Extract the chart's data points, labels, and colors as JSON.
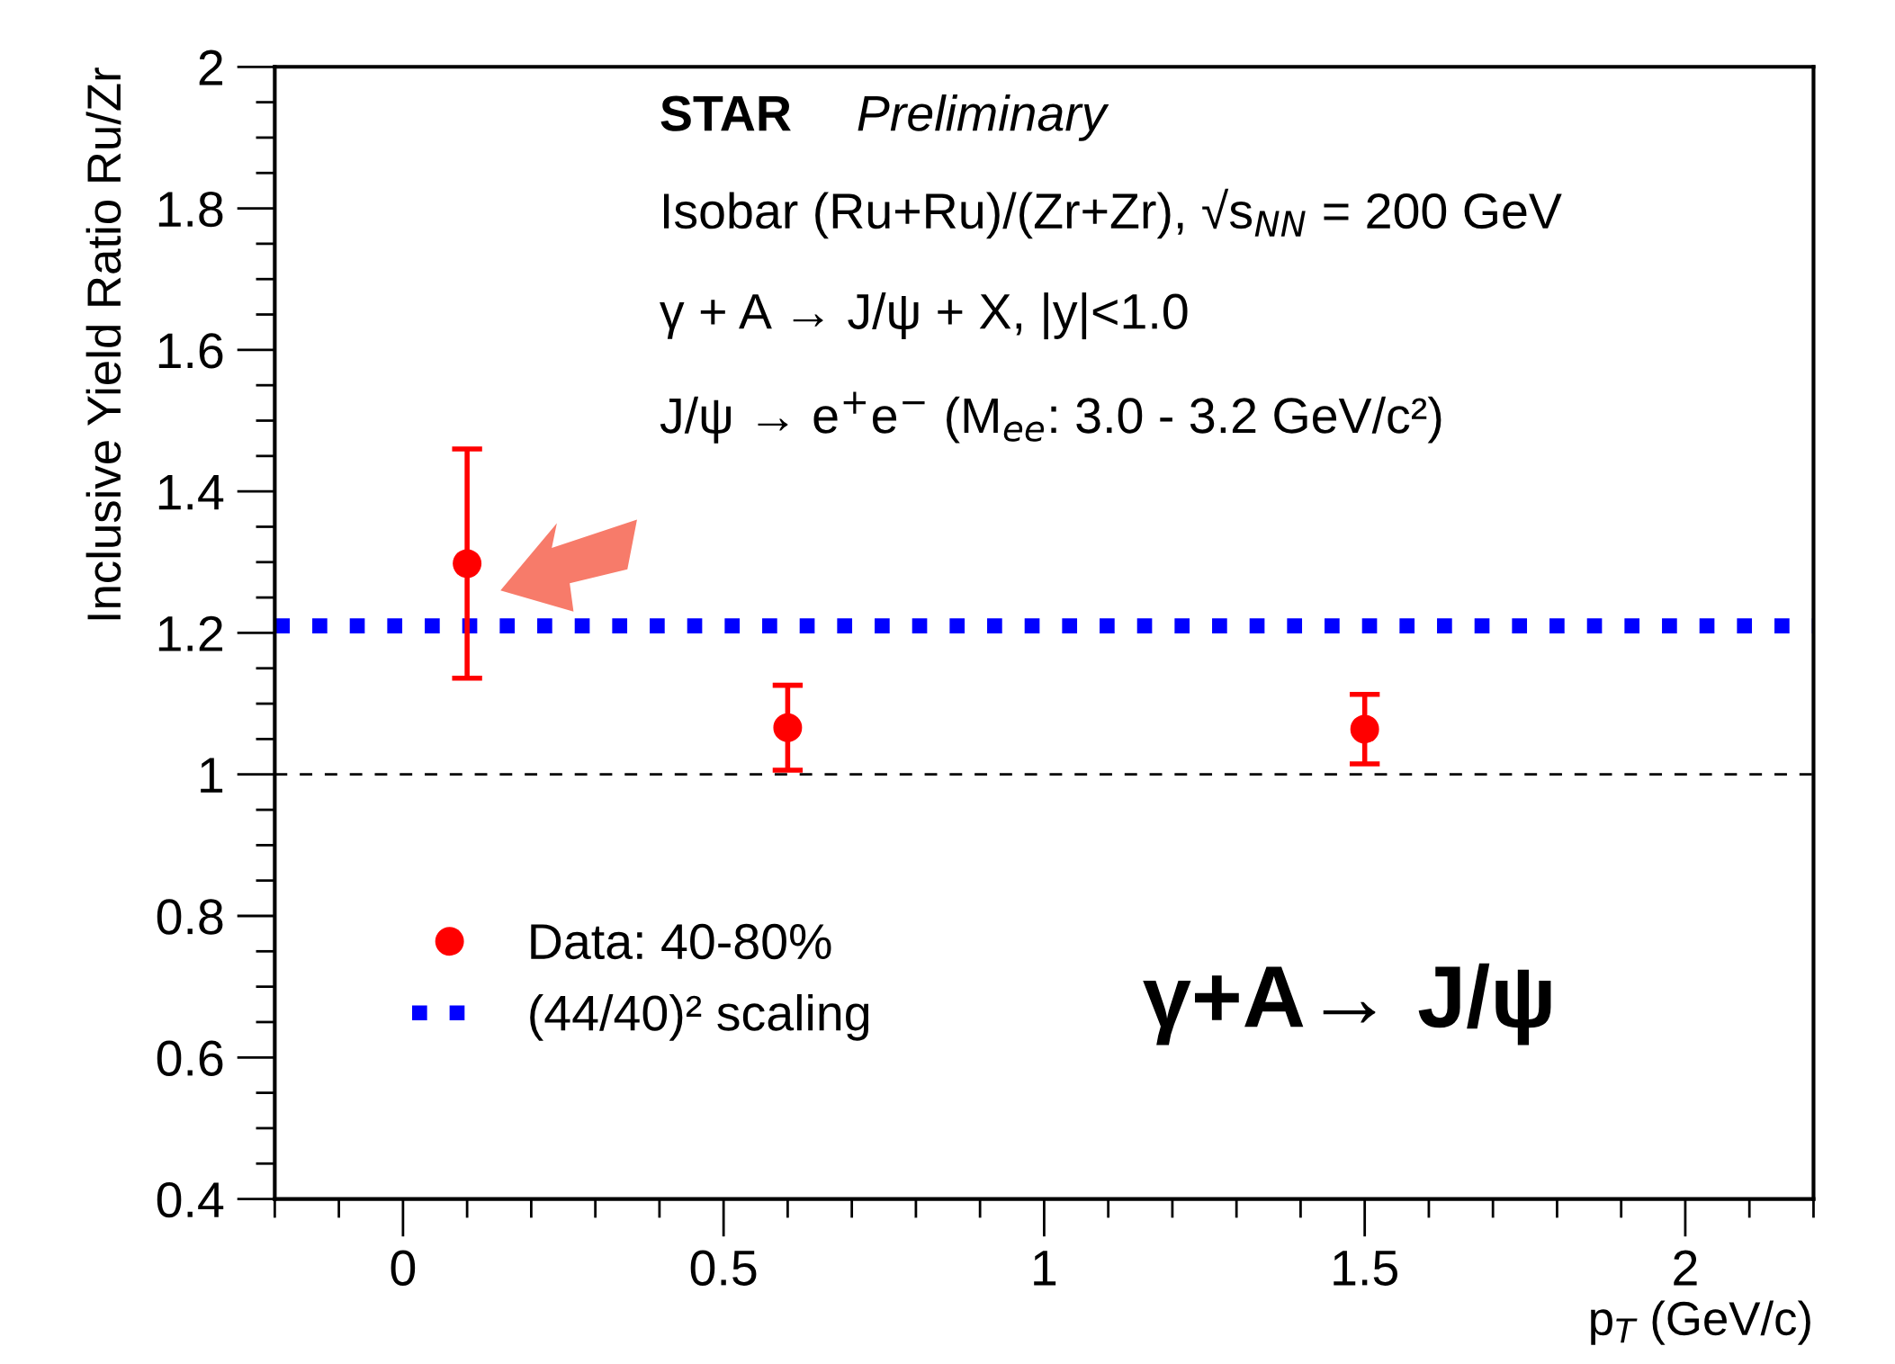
{
  "chart_data": {
    "type": "scatter",
    "xlabel": "p$_{T}$ (GeV/c)",
    "ylabel": "Inclusive Yield Ratio Ru/Zr",
    "x": [
      0.1,
      0.6,
      1.5
    ],
    "series": [
      {
        "name": "Data: 40-80%",
        "color": "#ff0000",
        "values": [
          1.298,
          1.066,
          1.064
        ],
        "errors": [
          [
            1.136,
            1.46
          ],
          [
            1.006,
            1.126
          ],
          [
            1.015,
            1.113
          ]
        ]
      }
    ],
    "xlim": [
      -0.2,
      2.2
    ],
    "xticks": [
      0,
      0.5,
      1,
      1.5,
      2
    ],
    "ylim": [
      0.4,
      2
    ],
    "yticks": [
      0.4,
      0.6,
      0.8,
      1,
      1.2,
      1.4,
      1.6,
      1.8,
      2
    ],
    "ref_lines": [
      {
        "axis": "y",
        "value": 1.21,
        "label": "(44/40)² scaling",
        "color": "#0000ff",
        "line_style": "dotted"
      },
      {
        "axis": "y",
        "value": 1,
        "label": null,
        "color": "#000000",
        "line_style": "dashed"
      }
    ],
    "annotations": [
      "STAR",
      "Preliminary",
      "Isobar (Ru+Ru)/(Zr+Zr), √s$_{NN}$ = 200 GeV",
      "γ + A → J/ψ + X, |y|<1.0",
      "J/ψ → e$^{+}$e$^{−}$ (M$_{ee}$: 3.0 - 3.2 GeV/c²)",
      "γ+A→ J/ψ"
    ],
    "marker": "circle",
    "legend": "bottom left",
    "grid": false
  }
}
